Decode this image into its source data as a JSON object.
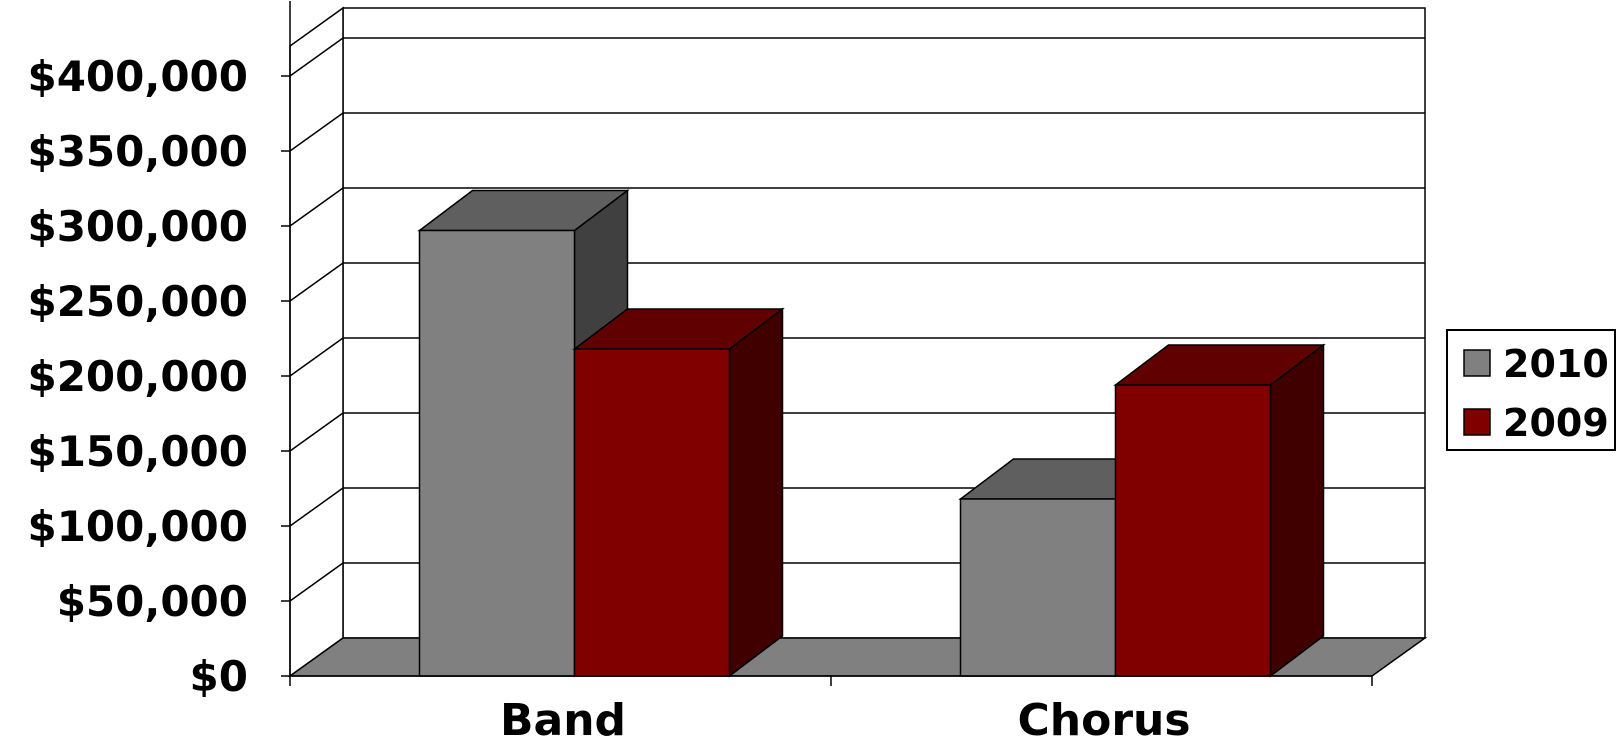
{
  "chart_data": {
    "type": "bar",
    "style": "3d-clustered-column",
    "categories": [
      "Band",
      "Chorus"
    ],
    "series": [
      {
        "name": "2010",
        "values": [
          297000,
          118000
        ],
        "color": "#808080",
        "top_color": "#5f5f5f",
        "side_color": "#404040"
      },
      {
        "name": "2009",
        "values": [
          218000,
          194000
        ],
        "color": "#800000",
        "top_color": "#600000",
        "side_color": "#400000"
      }
    ],
    "y_ticks": [
      "$0",
      "$50,000",
      "$100,000",
      "$150,000",
      "$200,000",
      "$250,000",
      "$300,000",
      "$350,000",
      "$400,000"
    ],
    "ylim": [
      0,
      450000
    ],
    "y_tick_step": 50000,
    "title": "",
    "xlabel": "",
    "ylabel": "",
    "grid": true,
    "legend_position": "right",
    "floor_color": "#808080"
  }
}
